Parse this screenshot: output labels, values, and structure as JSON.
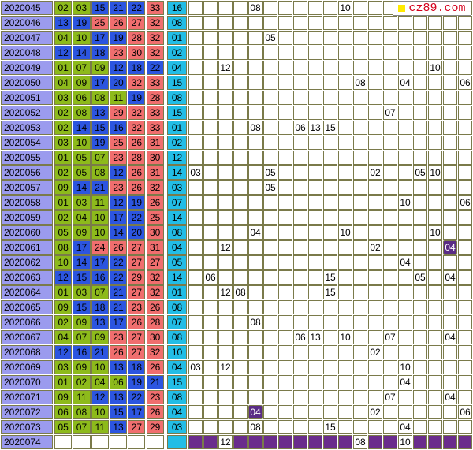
{
  "colors": {
    "period_bg": "#9b9bee",
    "red_bg": "#f06e6e",
    "blue_bg": "#2c55e0",
    "green_bg": "#8dba1b",
    "special_bg": "#22bde6",
    "highlight_bg": "#6a2c8c",
    "logo_text": "#d4001d",
    "logo_square": "#ffea00"
  },
  "logo": {
    "text": "cz89.com"
  },
  "rows": [
    {
      "period": "2020045",
      "reds": [
        {
          "n": "02",
          "c": "green"
        },
        {
          "n": "03",
          "c": "green"
        },
        {
          "n": "15",
          "c": "blue"
        },
        {
          "n": "21",
          "c": "blue"
        },
        {
          "n": "22",
          "c": "blue"
        },
        {
          "n": "33",
          "c": "red"
        }
      ],
      "blue": "16",
      "hits": [
        {
          "col": 4,
          "n": "08"
        },
        {
          "col": 10,
          "n": "10"
        }
      ]
    },
    {
      "period": "2020046",
      "reds": [
        {
          "n": "13",
          "c": "blue"
        },
        {
          "n": "19",
          "c": "blue"
        },
        {
          "n": "25",
          "c": "red"
        },
        {
          "n": "26",
          "c": "red"
        },
        {
          "n": "27",
          "c": "red"
        },
        {
          "n": "32",
          "c": "red"
        }
      ],
      "blue": "08",
      "hits": []
    },
    {
      "period": "2020047",
      "reds": [
        {
          "n": "04",
          "c": "green"
        },
        {
          "n": "10",
          "c": "green"
        },
        {
          "n": "17",
          "c": "blue"
        },
        {
          "n": "19",
          "c": "blue"
        },
        {
          "n": "28",
          "c": "red"
        },
        {
          "n": "32",
          "c": "red"
        }
      ],
      "blue": "01",
      "hits": [
        {
          "col": 5,
          "n": "05"
        }
      ]
    },
    {
      "period": "2020048",
      "reds": [
        {
          "n": "12",
          "c": "blue"
        },
        {
          "n": "14",
          "c": "blue"
        },
        {
          "n": "18",
          "c": "blue"
        },
        {
          "n": "23",
          "c": "red"
        },
        {
          "n": "30",
          "c": "red"
        },
        {
          "n": "32",
          "c": "red"
        }
      ],
      "blue": "02",
      "hits": []
    },
    {
      "period": "2020049",
      "reds": [
        {
          "n": "01",
          "c": "green"
        },
        {
          "n": "07",
          "c": "green"
        },
        {
          "n": "09",
          "c": "green"
        },
        {
          "n": "12",
          "c": "blue"
        },
        {
          "n": "18",
          "c": "blue"
        },
        {
          "n": "22",
          "c": "blue"
        }
      ],
      "blue": "04",
      "hits": [
        {
          "col": 2,
          "n": "12"
        },
        {
          "col": 16,
          "n": "10"
        }
      ]
    },
    {
      "period": "2020050",
      "reds": [
        {
          "n": "04",
          "c": "green"
        },
        {
          "n": "09",
          "c": "green"
        },
        {
          "n": "17",
          "c": "blue"
        },
        {
          "n": "20",
          "c": "blue"
        },
        {
          "n": "32",
          "c": "red"
        },
        {
          "n": "33",
          "c": "red"
        }
      ],
      "blue": "15",
      "hits": [
        {
          "col": 11,
          "n": "08"
        },
        {
          "col": 14,
          "n": "04"
        },
        {
          "col": 18,
          "n": "06"
        }
      ]
    },
    {
      "period": "2020051",
      "reds": [
        {
          "n": "03",
          "c": "green"
        },
        {
          "n": "06",
          "c": "green"
        },
        {
          "n": "08",
          "c": "green"
        },
        {
          "n": "11",
          "c": "green"
        },
        {
          "n": "19",
          "c": "blue"
        },
        {
          "n": "28",
          "c": "red"
        }
      ],
      "blue": "08",
      "hits": []
    },
    {
      "period": "2020052",
      "reds": [
        {
          "n": "02",
          "c": "green"
        },
        {
          "n": "08",
          "c": "green"
        },
        {
          "n": "13",
          "c": "blue"
        },
        {
          "n": "29",
          "c": "red"
        },
        {
          "n": "32",
          "c": "red"
        },
        {
          "n": "33",
          "c": "red"
        }
      ],
      "blue": "15",
      "hits": [
        {
          "col": 13,
          "n": "07"
        }
      ]
    },
    {
      "period": "2020053",
      "reds": [
        {
          "n": "02",
          "c": "green"
        },
        {
          "n": "14",
          "c": "blue"
        },
        {
          "n": "15",
          "c": "blue"
        },
        {
          "n": "16",
          "c": "blue"
        },
        {
          "n": "32",
          "c": "red"
        },
        {
          "n": "33",
          "c": "red"
        }
      ],
      "blue": "01",
      "hits": [
        {
          "col": 4,
          "n": "08"
        },
        {
          "col": 7,
          "n": "06"
        },
        {
          "col": 8,
          "n": "13"
        },
        {
          "col": 9,
          "n": "15"
        }
      ]
    },
    {
      "period": "2020054",
      "reds": [
        {
          "n": "03",
          "c": "green"
        },
        {
          "n": "10",
          "c": "green"
        },
        {
          "n": "19",
          "c": "blue"
        },
        {
          "n": "25",
          "c": "red"
        },
        {
          "n": "26",
          "c": "red"
        },
        {
          "n": "31",
          "c": "red"
        }
      ],
      "blue": "02",
      "hits": []
    },
    {
      "period": "2020055",
      "reds": [
        {
          "n": "01",
          "c": "green"
        },
        {
          "n": "05",
          "c": "green"
        },
        {
          "n": "07",
          "c": "green"
        },
        {
          "n": "23",
          "c": "red"
        },
        {
          "n": "28",
          "c": "red"
        },
        {
          "n": "30",
          "c": "red"
        }
      ],
      "blue": "12",
      "hits": []
    },
    {
      "period": "2020056",
      "reds": [
        {
          "n": "02",
          "c": "green"
        },
        {
          "n": "05",
          "c": "green"
        },
        {
          "n": "08",
          "c": "green"
        },
        {
          "n": "12",
          "c": "blue"
        },
        {
          "n": "26",
          "c": "red"
        },
        {
          "n": "31",
          "c": "red"
        }
      ],
      "blue": "14",
      "hits": [
        {
          "col": 0,
          "n": "03"
        },
        {
          "col": 5,
          "n": "05"
        },
        {
          "col": 12,
          "n": "02"
        },
        {
          "col": 15,
          "n": "05"
        },
        {
          "col": 16,
          "n": "10"
        }
      ]
    },
    {
      "period": "2020057",
      "reds": [
        {
          "n": "09",
          "c": "green"
        },
        {
          "n": "14",
          "c": "blue"
        },
        {
          "n": "21",
          "c": "blue"
        },
        {
          "n": "23",
          "c": "red"
        },
        {
          "n": "26",
          "c": "red"
        },
        {
          "n": "32",
          "c": "red"
        }
      ],
      "blue": "03",
      "hits": [
        {
          "col": 5,
          "n": "05"
        }
      ]
    },
    {
      "period": "2020058",
      "reds": [
        {
          "n": "01",
          "c": "green"
        },
        {
          "n": "03",
          "c": "green"
        },
        {
          "n": "11",
          "c": "green"
        },
        {
          "n": "12",
          "c": "blue"
        },
        {
          "n": "19",
          "c": "blue"
        },
        {
          "n": "26",
          "c": "red"
        }
      ],
      "blue": "07",
      "hits": [
        {
          "col": 14,
          "n": "10"
        },
        {
          "col": 18,
          "n": "06"
        }
      ]
    },
    {
      "period": "2020059",
      "reds": [
        {
          "n": "02",
          "c": "green"
        },
        {
          "n": "04",
          "c": "green"
        },
        {
          "n": "10",
          "c": "green"
        },
        {
          "n": "17",
          "c": "blue"
        },
        {
          "n": "22",
          "c": "blue"
        },
        {
          "n": "25",
          "c": "red"
        }
      ],
      "blue": "14",
      "hits": []
    },
    {
      "period": "2020060",
      "reds": [
        {
          "n": "05",
          "c": "green"
        },
        {
          "n": "09",
          "c": "green"
        },
        {
          "n": "10",
          "c": "green"
        },
        {
          "n": "14",
          "c": "blue"
        },
        {
          "n": "20",
          "c": "blue"
        },
        {
          "n": "30",
          "c": "red"
        }
      ],
      "blue": "08",
      "hits": [
        {
          "col": 4,
          "n": "04"
        },
        {
          "col": 10,
          "n": "10"
        },
        {
          "col": 16,
          "n": "10"
        }
      ]
    },
    {
      "period": "2020061",
      "reds": [
        {
          "n": "08",
          "c": "green"
        },
        {
          "n": "17",
          "c": "blue"
        },
        {
          "n": "24",
          "c": "red"
        },
        {
          "n": "26",
          "c": "red"
        },
        {
          "n": "27",
          "c": "red"
        },
        {
          "n": "31",
          "c": "red"
        }
      ],
      "blue": "04",
      "hits": [
        {
          "col": 2,
          "n": "12"
        },
        {
          "col": 12,
          "n": "02"
        },
        {
          "col": 17,
          "n": "04",
          "hl": true
        }
      ]
    },
    {
      "period": "2020062",
      "reds": [
        {
          "n": "10",
          "c": "green"
        },
        {
          "n": "14",
          "c": "blue"
        },
        {
          "n": "17",
          "c": "blue"
        },
        {
          "n": "22",
          "c": "blue"
        },
        {
          "n": "27",
          "c": "red"
        },
        {
          "n": "27",
          "c": "red"
        }
      ],
      "blue": "05",
      "hits": [
        {
          "col": 14,
          "n": "04"
        }
      ]
    },
    {
      "period": "2020063",
      "reds": [
        {
          "n": "12",
          "c": "blue"
        },
        {
          "n": "15",
          "c": "blue"
        },
        {
          "n": "16",
          "c": "blue"
        },
        {
          "n": "22",
          "c": "blue"
        },
        {
          "n": "29",
          "c": "red"
        },
        {
          "n": "32",
          "c": "red"
        }
      ],
      "blue": "14",
      "hits": [
        {
          "col": 1,
          "n": "06"
        },
        {
          "col": 9,
          "n": "15"
        },
        {
          "col": 15,
          "n": "05"
        },
        {
          "col": 17,
          "n": "04"
        }
      ]
    },
    {
      "period": "2020064",
      "reds": [
        {
          "n": "01",
          "c": "green"
        },
        {
          "n": "03",
          "c": "green"
        },
        {
          "n": "07",
          "c": "green"
        },
        {
          "n": "21",
          "c": "blue"
        },
        {
          "n": "27",
          "c": "red"
        },
        {
          "n": "32",
          "c": "red"
        }
      ],
      "blue": "01",
      "hits": [
        {
          "col": 2,
          "n": "12"
        },
        {
          "col": 3,
          "n": "08"
        },
        {
          "col": 9,
          "n": "15"
        }
      ]
    },
    {
      "period": "2020065",
      "reds": [
        {
          "n": "09",
          "c": "green"
        },
        {
          "n": "15",
          "c": "blue"
        },
        {
          "n": "18",
          "c": "blue"
        },
        {
          "n": "21",
          "c": "blue"
        },
        {
          "n": "23",
          "c": "red"
        },
        {
          "n": "26",
          "c": "red"
        }
      ],
      "blue": "08",
      "hits": []
    },
    {
      "period": "2020066",
      "reds": [
        {
          "n": "02",
          "c": "green"
        },
        {
          "n": "09",
          "c": "green"
        },
        {
          "n": "13",
          "c": "blue"
        },
        {
          "n": "17",
          "c": "blue"
        },
        {
          "n": "26",
          "c": "red"
        },
        {
          "n": "28",
          "c": "red"
        }
      ],
      "blue": "07",
      "hits": [
        {
          "col": 4,
          "n": "08"
        }
      ]
    },
    {
      "period": "2020067",
      "reds": [
        {
          "n": "04",
          "c": "green"
        },
        {
          "n": "07",
          "c": "green"
        },
        {
          "n": "09",
          "c": "green"
        },
        {
          "n": "23",
          "c": "red"
        },
        {
          "n": "27",
          "c": "red"
        },
        {
          "n": "30",
          "c": "red"
        }
      ],
      "blue": "08",
      "hits": [
        {
          "col": 7,
          "n": "06"
        },
        {
          "col": 8,
          "n": "13"
        },
        {
          "col": 10,
          "n": "10"
        },
        {
          "col": 13,
          "n": "07"
        },
        {
          "col": 17,
          "n": "04"
        }
      ]
    },
    {
      "period": "2020068",
      "reds": [
        {
          "n": "12",
          "c": "blue"
        },
        {
          "n": "16",
          "c": "blue"
        },
        {
          "n": "21",
          "c": "blue"
        },
        {
          "n": "26",
          "c": "red"
        },
        {
          "n": "27",
          "c": "red"
        },
        {
          "n": "32",
          "c": "red"
        }
      ],
      "blue": "10",
      "hits": [
        {
          "col": 12,
          "n": "02"
        }
      ]
    },
    {
      "period": "2020069",
      "reds": [
        {
          "n": "03",
          "c": "green"
        },
        {
          "n": "09",
          "c": "green"
        },
        {
          "n": "10",
          "c": "green"
        },
        {
          "n": "13",
          "c": "blue"
        },
        {
          "n": "18",
          "c": "blue"
        },
        {
          "n": "26",
          "c": "red"
        }
      ],
      "blue": "04",
      "hits": [
        {
          "col": 0,
          "n": "03"
        },
        {
          "col": 2,
          "n": "12"
        },
        {
          "col": 14,
          "n": "10"
        }
      ]
    },
    {
      "period": "2020070",
      "reds": [
        {
          "n": "01",
          "c": "green"
        },
        {
          "n": "02",
          "c": "green"
        },
        {
          "n": "04",
          "c": "green"
        },
        {
          "n": "06",
          "c": "green"
        },
        {
          "n": "19",
          "c": "blue"
        },
        {
          "n": "21",
          "c": "blue"
        }
      ],
      "blue": "15",
      "hits": [
        {
          "col": 14,
          "n": "04"
        }
      ]
    },
    {
      "period": "2020071",
      "reds": [
        {
          "n": "09",
          "c": "green"
        },
        {
          "n": "11",
          "c": "green"
        },
        {
          "n": "12",
          "c": "blue"
        },
        {
          "n": "13",
          "c": "blue"
        },
        {
          "n": "22",
          "c": "blue"
        },
        {
          "n": "23",
          "c": "red"
        }
      ],
      "blue": "08",
      "hits": [
        {
          "col": 13,
          "n": "07"
        },
        {
          "col": 17,
          "n": "04"
        }
      ]
    },
    {
      "period": "2020072",
      "reds": [
        {
          "n": "06",
          "c": "green"
        },
        {
          "n": "08",
          "c": "green"
        },
        {
          "n": "10",
          "c": "green"
        },
        {
          "n": "15",
          "c": "blue"
        },
        {
          "n": "17",
          "c": "blue"
        },
        {
          "n": "26",
          "c": "red"
        }
      ],
      "blue": "04",
      "hits": [
        {
          "col": 4,
          "n": "04",
          "hl": true
        },
        {
          "col": 12,
          "n": "02"
        },
        {
          "col": 18,
          "n": "06"
        }
      ]
    },
    {
      "period": "2020073",
      "reds": [
        {
          "n": "05",
          "c": "green"
        },
        {
          "n": "07",
          "c": "green"
        },
        {
          "n": "11",
          "c": "green"
        },
        {
          "n": "13",
          "c": "blue"
        },
        {
          "n": "27",
          "c": "red"
        },
        {
          "n": "29",
          "c": "red"
        }
      ],
      "blue": "03",
      "hits": [
        {
          "col": 4,
          "n": "08"
        },
        {
          "col": 9,
          "n": "15"
        },
        {
          "col": 14,
          "n": "04"
        }
      ]
    },
    {
      "period": "2020074",
      "reds": [],
      "blue": "",
      "pending": true,
      "hits": [
        {
          "col": 2,
          "n": "12"
        },
        {
          "col": 11,
          "n": "08"
        },
        {
          "col": 14,
          "n": "10"
        }
      ]
    }
  ]
}
